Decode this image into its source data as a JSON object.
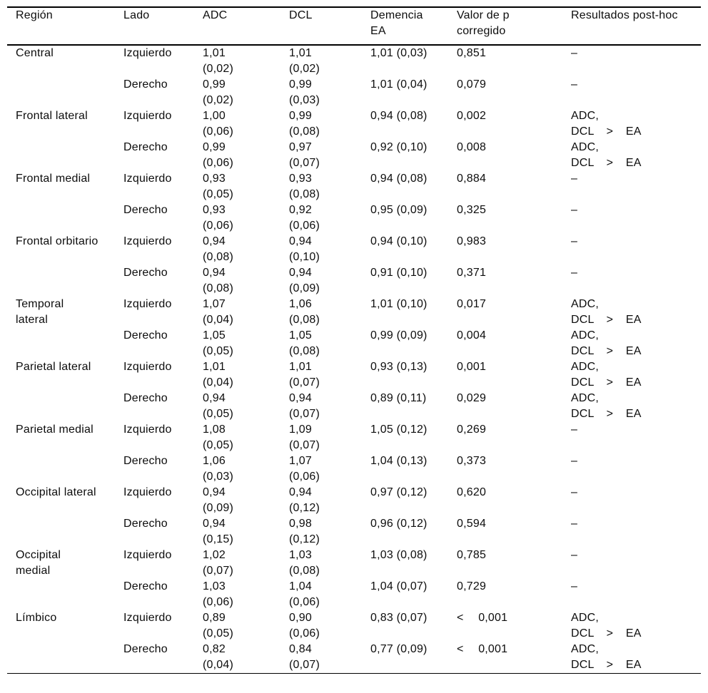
{
  "table": {
    "header": {
      "region": "Región",
      "side": "Lado",
      "adc": "ADC",
      "dcl": "DCL",
      "dementia_line1": "Demencia",
      "dementia_line2": "EA",
      "pvalue_line1": "Valor de p",
      "pvalue_line2": "corregido",
      "posthoc": "Resultados post-hoc"
    },
    "groups": [
      {
        "region_line1": "Central",
        "region_line2": "",
        "rows": [
          {
            "side": "Izquierdo",
            "adc": "1,01",
            "adc_sd": "(0,02)",
            "dcl": "1,01",
            "dcl_sd": "(0,02)",
            "ea": "1,01 (0,03)",
            "p": "0,851",
            "ph1": "–",
            "ph2": ""
          },
          {
            "side": "Derecho",
            "adc": "0,99",
            "adc_sd": "(0,02)",
            "dcl": "0,99",
            "dcl_sd": "(0,03)",
            "ea": "1,01 (0,04)",
            "p": "0,079",
            "ph1": "–",
            "ph2": ""
          }
        ]
      },
      {
        "region_line1": "Frontal lateral",
        "region_line2": "",
        "rows": [
          {
            "side": "Izquierdo",
            "adc": "1,00",
            "adc_sd": "(0,06)",
            "dcl": "0,99",
            "dcl_sd": "(0,08)",
            "ea": "0,94 (0,08)",
            "p": "0,002",
            "ph1": "ADC,",
            "ph2": "DCL > EA"
          },
          {
            "side": "Derecho",
            "adc": "0,99",
            "adc_sd": "(0,06)",
            "dcl": "0,97",
            "dcl_sd": "(0,07)",
            "ea": "0,92 (0,10)",
            "p": "0,008",
            "ph1": "ADC,",
            "ph2": "DCL > EA"
          }
        ]
      },
      {
        "region_line1": "Frontal medial",
        "region_line2": "",
        "rows": [
          {
            "side": "Izquierdo",
            "adc": "0,93",
            "adc_sd": "(0,05)",
            "dcl": "0,93",
            "dcl_sd": "(0,08)",
            "ea": "0,94 (0,08)",
            "p": "0,884",
            "ph1": "–",
            "ph2": ""
          },
          {
            "side": "Derecho",
            "adc": "0,93",
            "adc_sd": "(0,06)",
            "dcl": "0,92",
            "dcl_sd": "(0,06)",
            "ea": "0,95 (0,09)",
            "p": "0,325",
            "ph1": "–",
            "ph2": ""
          }
        ]
      },
      {
        "region_line1": "Frontal orbitario",
        "region_line2": "",
        "rows": [
          {
            "side": "Izquierdo",
            "adc": "0,94",
            "adc_sd": "(0,08)",
            "dcl": "0,94",
            "dcl_sd": "(0,10)",
            "ea": "0,94 (0,10)",
            "p": "0,983",
            "ph1": "–",
            "ph2": ""
          },
          {
            "side": "Derecho",
            "adc": "0,94",
            "adc_sd": "(0,08)",
            "dcl": "0,94",
            "dcl_sd": "(0,09)",
            "ea": "0,91 (0,10)",
            "p": "0,371",
            "ph1": "–",
            "ph2": ""
          }
        ]
      },
      {
        "region_line1": "Temporal",
        "region_line2": "lateral",
        "rows": [
          {
            "side": "Izquierdo",
            "adc": "1,07",
            "adc_sd": "(0,04)",
            "dcl": "1,06",
            "dcl_sd": "(0,08)",
            "ea": "1,01 (0,10)",
            "p": "0,017",
            "ph1": "ADC,",
            "ph2": "DCL > EA"
          },
          {
            "side": "Derecho",
            "adc": "1,05",
            "adc_sd": "(0,05)",
            "dcl": "1,05",
            "dcl_sd": "(0,08)",
            "ea": "0,99 (0,09)",
            "p": "0,004",
            "ph1": "ADC,",
            "ph2": "DCL > EA"
          }
        ]
      },
      {
        "region_line1": "Parietal lateral",
        "region_line2": "",
        "rows": [
          {
            "side": "Izquierdo",
            "adc": "1,01",
            "adc_sd": "(0,04)",
            "dcl": "1,01",
            "dcl_sd": "(0,07)",
            "ea": "0,93 (0,13)",
            "p": "0,001",
            "ph1": "ADC,",
            "ph2": "DCL > EA"
          },
          {
            "side": "Derecho",
            "adc": "0,94",
            "adc_sd": "(0,05)",
            "dcl": "0,94",
            "dcl_sd": "(0,07)",
            "ea": "0,89 (0,11)",
            "p": "0,029",
            "ph1": "ADC,",
            "ph2": "DCL > EA"
          }
        ]
      },
      {
        "region_line1": "Parietal medial",
        "region_line2": "",
        "rows": [
          {
            "side": "Izquierdo",
            "adc": "1,08",
            "adc_sd": "(0,05)",
            "dcl": "1,09",
            "dcl_sd": "(0,07)",
            "ea": "1,05 (0,12)",
            "p": "0,269",
            "ph1": "–",
            "ph2": ""
          },
          {
            "side": "Derecho",
            "adc": "1,06",
            "adc_sd": "(0,03)",
            "dcl": "1,07",
            "dcl_sd": "(0,06)",
            "ea": "1,04 (0,13)",
            "p": "0,373",
            "ph1": "–",
            "ph2": ""
          }
        ]
      },
      {
        "region_line1": "Occipital lateral",
        "region_line2": "",
        "rows": [
          {
            "side": "Izquierdo",
            "adc": "0,94",
            "adc_sd": "(0,09)",
            "dcl": "0,94",
            "dcl_sd": "(0,12)",
            "ea": "0,97 (0,12)",
            "p": "0,620",
            "ph1": "–",
            "ph2": ""
          },
          {
            "side": "Derecho",
            "adc": "0,94",
            "adc_sd": "(0,15)",
            "dcl": "0,98",
            "dcl_sd": "(0,12)",
            "ea": "0,96 (0,12)",
            "p": "0,594",
            "ph1": "–",
            "ph2": ""
          }
        ]
      },
      {
        "region_line1": "Occipital",
        "region_line2": "medial",
        "rows": [
          {
            "side": "Izquierdo",
            "adc": "1,02",
            "adc_sd": "(0,07)",
            "dcl": "1,03",
            "dcl_sd": "(0,08)",
            "ea": "1,03 (0,08)",
            "p": "0,785",
            "ph1": "–",
            "ph2": ""
          },
          {
            "side": "Derecho",
            "adc": "1,03",
            "adc_sd": "(0,06)",
            "dcl": "1,04",
            "dcl_sd": "(0,06)",
            "ea": "1,04 (0,07)",
            "p": "0,729",
            "ph1": "–",
            "ph2": ""
          }
        ]
      },
      {
        "region_line1": "Límbico",
        "region_line2": "",
        "rows": [
          {
            "side": "Izquierdo",
            "adc": "0,89",
            "adc_sd": "(0,05)",
            "dcl": "0,90",
            "dcl_sd": "(0,06)",
            "ea": "0,83 (0,07)",
            "p": "< 0,001",
            "ph1": "ADC,",
            "ph2": "DCL > EA"
          },
          {
            "side": "Derecho",
            "adc": "0,82",
            "adc_sd": "(0,04)",
            "dcl": "0,84",
            "dcl_sd": "(0,07)",
            "ea": "0,77 (0,09)",
            "p": "< 0,001",
            "ph1": "ADC,",
            "ph2": "DCL > EA"
          }
        ]
      }
    ],
    "colors": {
      "text": "#0d0d0d",
      "rule": "#000000",
      "background": "#ffffff"
    }
  }
}
